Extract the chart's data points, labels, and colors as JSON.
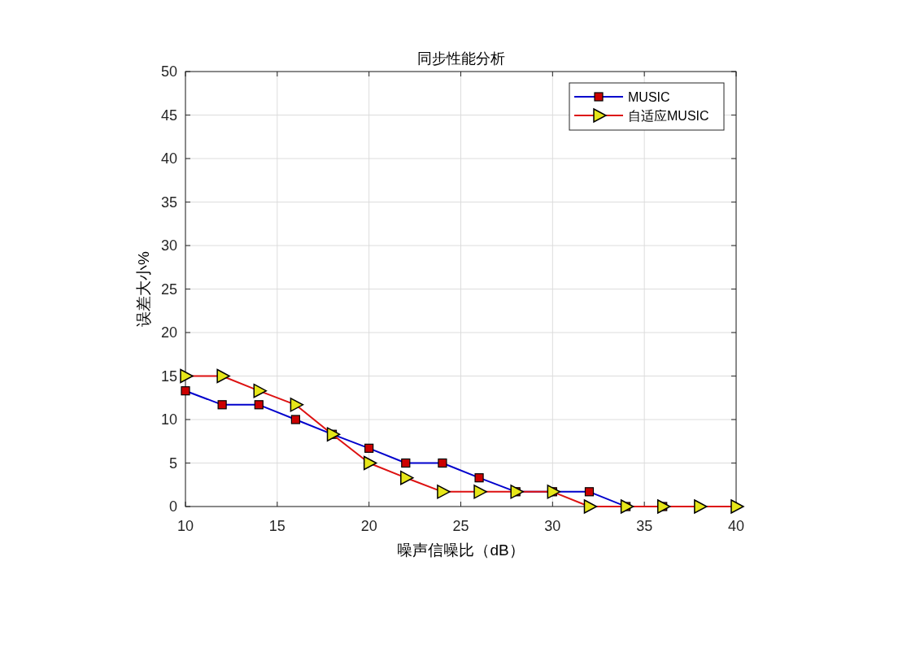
{
  "chart_data": {
    "type": "line",
    "title": "同步性能分析",
    "xlabel": "噪声信噪比（dB）",
    "ylabel": "误差大小%",
    "x": [
      10,
      12,
      14,
      16,
      18,
      20,
      22,
      24,
      26,
      28,
      30,
      32,
      34,
      36,
      38,
      40
    ],
    "series": [
      {
        "name": "MUSIC",
        "color": "#0000cc",
        "marker": "square",
        "values": [
          13.3,
          11.7,
          11.7,
          10,
          8.3,
          6.7,
          5,
          5,
          3.3,
          1.7,
          1.7,
          1.7,
          0,
          0,
          null,
          null
        ]
      },
      {
        "name": "自适应MUSIC",
        "color": "#dd1111",
        "marker": "triangle",
        "values": [
          15,
          15,
          13.3,
          11.7,
          8.3,
          5,
          3.3,
          1.7,
          1.7,
          1.7,
          1.7,
          0,
          0,
          0,
          0,
          0
        ]
      }
    ],
    "xlim": [
      10,
      40
    ],
    "xticks": [
      10,
      15,
      20,
      25,
      30,
      35,
      40
    ],
    "ylim": [
      0,
      50
    ],
    "yticks": [
      0,
      5,
      10,
      15,
      20,
      25,
      30,
      35,
      40,
      45,
      50
    ],
    "grid": true,
    "legend": "top right"
  }
}
